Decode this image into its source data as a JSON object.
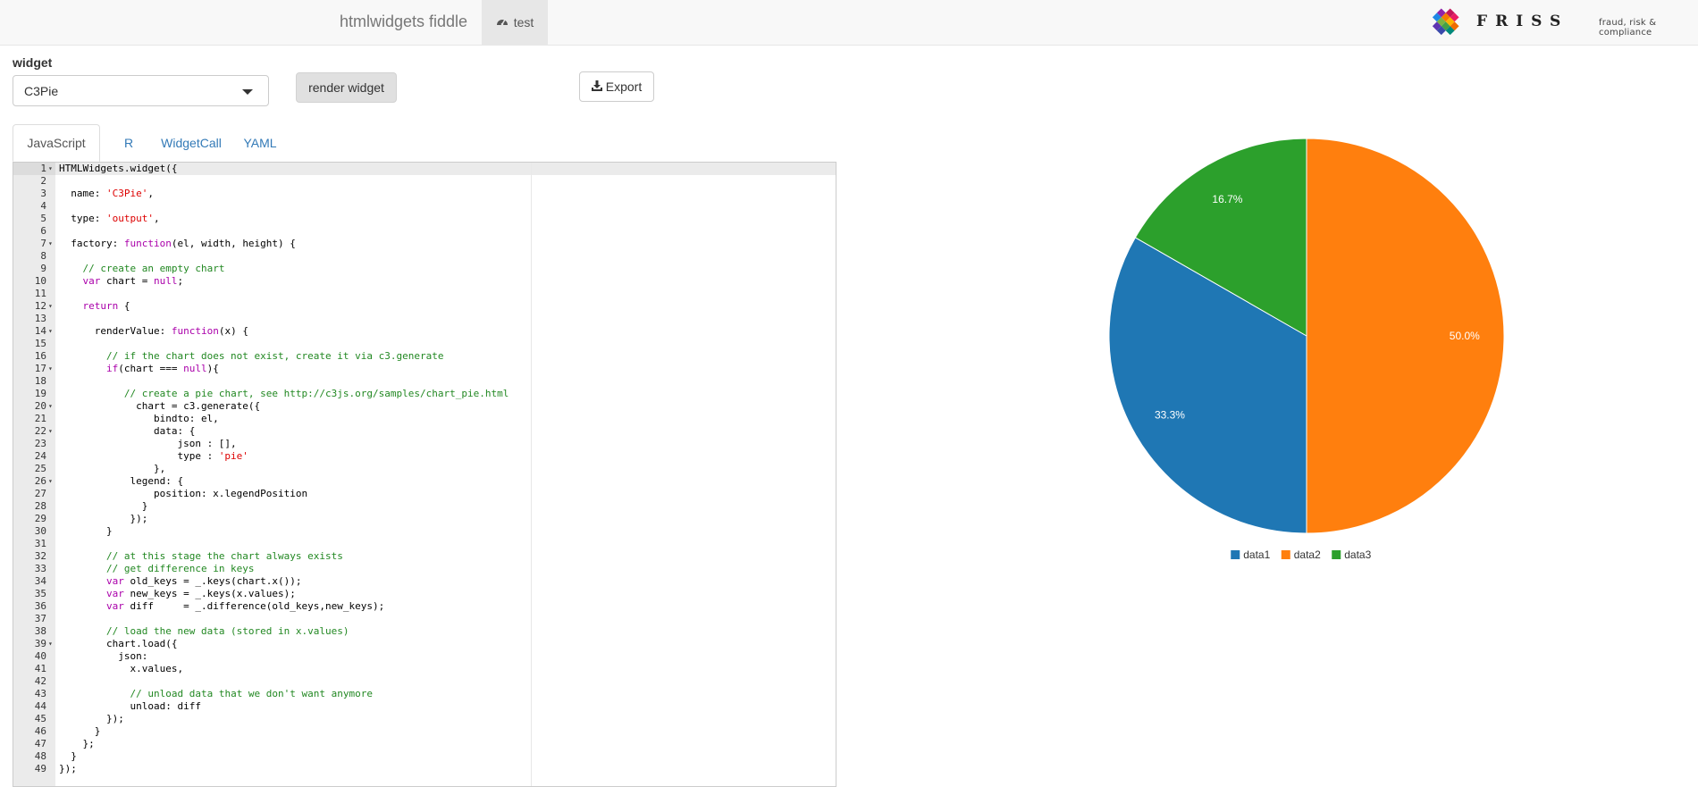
{
  "navbar": {
    "brand": "htmlwidgets fiddle",
    "tab_label": "test",
    "logo_word": "FRISS",
    "logo_tagline": "fraud, risk & compliance"
  },
  "form": {
    "widget_label": "widget",
    "widget_selected": "C3Pie",
    "render_button": "render widget",
    "export_button": "Export"
  },
  "tabs": [
    "JavaScript",
    "R",
    "WidgetCall",
    "YAML"
  ],
  "active_tab": "JavaScript",
  "editor": {
    "lines": [
      "HTMLWidgets.widget({",
      "",
      "  name: 'C3Pie',",
      "",
      "  type: 'output',",
      "",
      "  factory: function(el, width, height) {",
      "",
      "    // create an empty chart",
      "    var chart = null;",
      "",
      "    return {",
      "",
      "      renderValue: function(x) {",
      "",
      "        // if the chart does not exist, create it via c3.generate",
      "        if(chart === null){",
      "",
      "           // create a pie chart, see http://c3js.org/samples/chart_pie.html",
      "             chart = c3.generate({",
      "                bindto: el,",
      "                data: {",
      "                    json : [],",
      "                    type : 'pie'",
      "                },",
      "            legend: {",
      "                position: x.legendPosition",
      "              }",
      "            });",
      "        }",
      "",
      "        // at this stage the chart always exists",
      "        // get difference in keys",
      "        var old_keys = _.keys(chart.x());",
      "        var new_keys = _.keys(x.values);",
      "        var diff     = _.difference(old_keys,new_keys);",
      "",
      "        // load the new data (stored in x.values)",
      "        chart.load({",
      "          json:",
      "            x.values,",
      "",
      "            // unload data that we don't want anymore",
      "            unload: diff",
      "        });",
      "      }",
      "    };",
      "  }",
      "});"
    ],
    "fold_lines": [
      1,
      7,
      12,
      14,
      17,
      20,
      22,
      26,
      39
    ]
  },
  "chart_data": {
    "type": "pie",
    "categories": [
      "data1",
      "data2",
      "data3"
    ],
    "values": [
      33.3,
      50.0,
      16.7
    ],
    "labels": [
      "33.3%",
      "50.0%",
      "16.7%"
    ],
    "colors": [
      "#1f77b4",
      "#ff7f0e",
      "#2ca02c"
    ],
    "legend_position": "bottom"
  }
}
